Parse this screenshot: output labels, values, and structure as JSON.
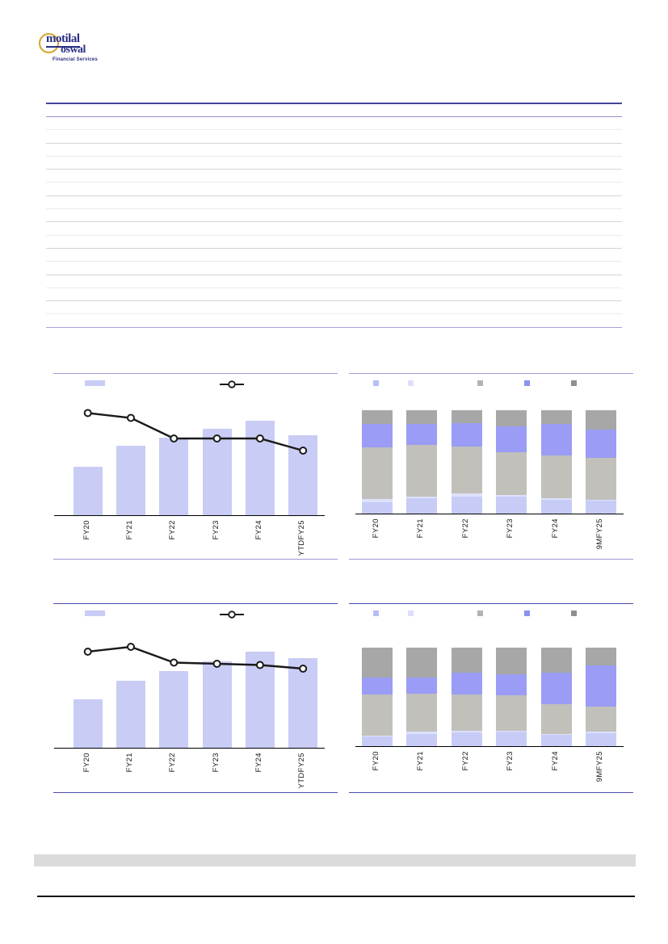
{
  "logo": {
    "line1": "motilal",
    "line2": "oswal",
    "subtitle": "Financial Services"
  },
  "table": {
    "row_count": 16,
    "visible_text": ""
  },
  "palette": {
    "bar_fill": "#c9ccf5",
    "line_color": "#1a1a1a",
    "marker_fill": "#ffffff",
    "stack_colors": [
      "#c7ccf7",
      "#dee1fb",
      "#c1c0bb",
      "#9a9cf5",
      "#a7a7a7"
    ],
    "legend_swatch_colors": [
      "#b6bdf6",
      "#dde0fb",
      "#b5b3ae",
      "#8b92f0",
      "#8f8f8f"
    ],
    "block_border_top_row": "#9b9bd8",
    "block_border_bottom_row": "#4c4cae",
    "table_top_border": "#44449c",
    "footer_band": "#dbdbdb",
    "logo_navy": "#2b2f83",
    "logo_gold": "#d2a62c"
  },
  "chart_data": [
    {
      "type": "bar",
      "variant": "bar-with-line",
      "position": "top-left",
      "categories": [
        "FY20",
        "FY21",
        "FY22",
        "FY23",
        "FY24",
        "YTDFY25"
      ],
      "series": [
        {
          "kind": "bar",
          "label": "",
          "values_pct_of_plot": [
            40,
            57,
            64,
            71,
            78,
            66
          ]
        },
        {
          "kind": "line",
          "label": "",
          "values_pct_of_plot": [
            85,
            81,
            64,
            64,
            64,
            54
          ]
        }
      ],
      "legend_position": "top"
    },
    {
      "type": "bar",
      "variant": "stacked-100pct",
      "position": "top-right",
      "categories": [
        "FY20",
        "FY21",
        "FY22",
        "FY23",
        "FY24",
        "9MFY25"
      ],
      "series": [
        {
          "label": "",
          "values_pct": [
            10.5,
            14.4,
            16.2,
            15.7,
            13.1,
            12.0
          ]
        },
        {
          "label": "",
          "values_pct": [
            3.1,
            1.8,
            2.6,
            1.8,
            1.0,
            1.0
          ]
        },
        {
          "label": "",
          "values_pct": [
            50.3,
            49.7,
            45.3,
            41.2,
            41.4,
            40.5
          ]
        },
        {
          "label": "",
          "values_pct": [
            22.3,
            20.2,
            22.8,
            25.1,
            30.9,
            27.7
          ]
        },
        {
          "label": "",
          "values_pct": [
            13.8,
            13.9,
            13.1,
            16.2,
            13.6,
            18.8
          ]
        }
      ],
      "legend_position": "top"
    },
    {
      "type": "bar",
      "variant": "bar-with-line",
      "position": "bottom-left",
      "categories": [
        "FY20",
        "FY21",
        "FY22",
        "FY23",
        "FY24",
        "YTDFY25"
      ],
      "series": [
        {
          "kind": "bar",
          "label": "",
          "values_pct_of_plot": [
            40,
            55,
            63,
            71,
            79,
            74
          ]
        },
        {
          "kind": "line",
          "label": "",
          "values_pct_of_plot": [
            80,
            84,
            71,
            70,
            69,
            66
          ]
        }
      ],
      "legend_position": "top"
    },
    {
      "type": "bar",
      "variant": "stacked-100pct",
      "position": "bottom-right",
      "categories": [
        "FY20",
        "FY21",
        "FY22",
        "FY23",
        "FY24",
        "9MFY25"
      ],
      "series": [
        {
          "label": "",
          "values_pct": [
            9.3,
            12.3,
            13.6,
            14.2,
            10.9,
            12.8
          ]
        },
        {
          "label": "",
          "values_pct": [
            0.8,
            1.9,
            1.4,
            0.8,
            1.4,
            1.4
          ]
        },
        {
          "label": "",
          "values_pct": [
            42.2,
            39.0,
            37.3,
            36.0,
            29.7,
            25.9
          ]
        },
        {
          "label": "",
          "values_pct": [
            16.9,
            16.3,
            21.8,
            21.2,
            32.2,
            41.4
          ]
        },
        {
          "label": "",
          "values_pct": [
            30.8,
            30.5,
            25.9,
            27.8,
            25.8,
            18.5
          ]
        }
      ],
      "legend_position": "top"
    }
  ]
}
